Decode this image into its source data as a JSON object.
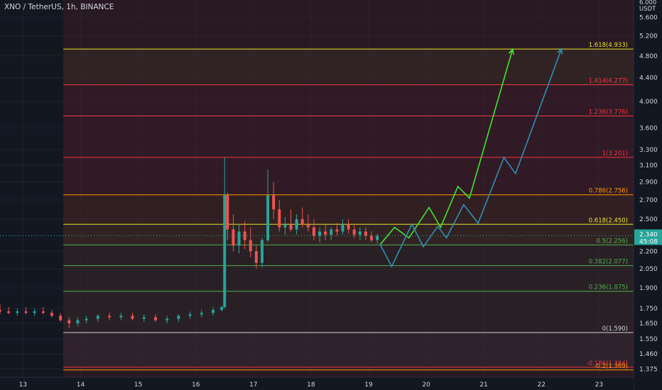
{
  "header": {
    "title": "XNO / TetherUS, 1h, BINANCE"
  },
  "price_axis": {
    "currency": "USDT",
    "top_label": "6.000",
    "ticks": [
      "5.600",
      "5.200",
      "4.800",
      "4.400",
      "4.000",
      "3.600",
      "3.300",
      "3.100",
      "2.900",
      "2.700",
      "2.500",
      "2.200",
      "2.050",
      "1.900",
      "1.750",
      "1.650",
      "1.550",
      "1.460",
      "1.375"
    ],
    "tick_values": [
      5.6,
      5.2,
      4.8,
      4.4,
      4.0,
      3.6,
      3.3,
      3.1,
      2.9,
      2.7,
      2.5,
      2.2,
      2.05,
      1.9,
      1.75,
      1.65,
      1.55,
      1.46,
      1.375
    ],
    "current_price": "2.340",
    "current_value": 2.34,
    "countdown": "45:08"
  },
  "time_axis": {
    "ticks": [
      "13",
      "14",
      "15",
      "16",
      "17",
      "18",
      "19",
      "20",
      "21",
      "22",
      "23"
    ],
    "tick_days": [
      13,
      14,
      15,
      16,
      17,
      18,
      19,
      20,
      21,
      22,
      23
    ]
  },
  "chart_data": {
    "type": "candlestick",
    "title": "XNO / TetherUS, 1h, BINANCE",
    "x_unit": "day of month",
    "y_unit": "USDT",
    "xlim": [
      12.6,
      23.6
    ],
    "ylim": [
      1.33,
      6.0
    ],
    "y_scale": "log",
    "fibonacci_levels": [
      {
        "label": "1.618(4.933)",
        "value": 4.933,
        "color": "#e8e62e"
      },
      {
        "label": "1.414(4.277)",
        "value": 4.277,
        "color": "#f23645"
      },
      {
        "label": "1.236(3.776)",
        "value": 3.776,
        "color": "#f23645"
      },
      {
        "label": "1(3.201)",
        "value": 3.201,
        "color": "#f23645"
      },
      {
        "label": "0.786(2.756)",
        "value": 2.756,
        "color": "#ff9800"
      },
      {
        "label": "0.618(2.450)",
        "value": 2.45,
        "color": "#e8e62e"
      },
      {
        "label": "0.5(2.256)",
        "value": 2.256,
        "color": "#4caf50"
      },
      {
        "label": "0.382(2.077)",
        "value": 2.077,
        "color": "#4caf50"
      },
      {
        "label": "0.236(1.875)",
        "value": 1.875,
        "color": "#4caf50"
      },
      {
        "label": "0(1.590)",
        "value": 1.59,
        "color": "#d1d4dc"
      },
      {
        "label": "-0.186(1.384)",
        "value": 1.384,
        "color": "#f23645"
      },
      {
        "label": "-0.2(1.369)",
        "value": 1.369,
        "color": "#ff9800"
      }
    ],
    "projection_paths": [
      {
        "color": "#3ee62e",
        "points": [
          [
            19.2,
            2.26
          ],
          [
            19.45,
            2.42
          ],
          [
            19.7,
            2.32
          ],
          [
            20.05,
            2.62
          ],
          [
            20.25,
            2.42
          ],
          [
            20.55,
            2.85
          ],
          [
            20.75,
            2.72
          ],
          [
            21.5,
            4.93
          ]
        ]
      },
      {
        "color": "#2f8fb0",
        "points": [
          [
            19.2,
            2.26
          ],
          [
            19.4,
            2.07
          ],
          [
            19.75,
            2.45
          ],
          [
            19.95,
            2.24
          ],
          [
            20.2,
            2.43
          ],
          [
            20.35,
            2.32
          ],
          [
            20.65,
            2.65
          ],
          [
            20.9,
            2.46
          ],
          [
            21.35,
            3.2
          ],
          [
            21.55,
            3.0
          ],
          [
            22.35,
            4.94
          ]
        ]
      }
    ],
    "dark_band_xrange": [
      12.6,
      13.7
    ],
    "candles": [
      [
        12.6,
        1.74,
        1.78,
        1.71,
        1.73
      ],
      [
        12.75,
        1.73,
        1.76,
        1.71,
        1.72
      ],
      [
        12.9,
        1.72,
        1.75,
        1.7,
        1.73
      ],
      [
        13.05,
        1.73,
        1.76,
        1.71,
        1.72
      ],
      [
        13.2,
        1.72,
        1.75,
        1.7,
        1.73
      ],
      [
        13.35,
        1.73,
        1.76,
        1.71,
        1.72
      ],
      [
        13.5,
        1.72,
        1.74,
        1.69,
        1.7
      ],
      [
        13.65,
        1.7,
        1.72,
        1.66,
        1.67
      ],
      [
        13.8,
        1.67,
        1.69,
        1.62,
        1.65
      ],
      [
        13.95,
        1.65,
        1.69,
        1.63,
        1.67
      ],
      [
        14.1,
        1.67,
        1.7,
        1.65,
        1.68
      ],
      [
        14.3,
        1.68,
        1.71,
        1.66,
        1.7
      ],
      [
        14.5,
        1.7,
        1.72,
        1.67,
        1.69
      ],
      [
        14.7,
        1.69,
        1.72,
        1.67,
        1.7
      ],
      [
        14.9,
        1.7,
        1.72,
        1.67,
        1.68
      ],
      [
        15.1,
        1.68,
        1.71,
        1.66,
        1.69
      ],
      [
        15.3,
        1.69,
        1.71,
        1.66,
        1.67
      ],
      [
        15.5,
        1.67,
        1.7,
        1.65,
        1.68
      ],
      [
        15.7,
        1.68,
        1.71,
        1.66,
        1.7
      ],
      [
        15.9,
        1.7,
        1.73,
        1.68,
        1.71
      ],
      [
        16.1,
        1.71,
        1.74,
        1.69,
        1.72
      ],
      [
        16.3,
        1.72,
        1.76,
        1.7,
        1.74
      ],
      [
        16.45,
        1.74,
        1.77,
        1.73,
        1.76
      ],
      [
        16.5,
        1.76,
        3.2,
        1.75,
        2.75
      ],
      [
        16.55,
        2.75,
        2.78,
        2.3,
        2.4
      ],
      [
        16.65,
        2.4,
        2.55,
        2.2,
        2.25
      ],
      [
        16.75,
        2.25,
        2.45,
        2.18,
        2.38
      ],
      [
        16.85,
        2.38,
        2.48,
        2.22,
        2.3
      ],
      [
        16.95,
        2.3,
        2.42,
        2.15,
        2.2
      ],
      [
        17.05,
        2.2,
        2.25,
        2.05,
        2.1
      ],
      [
        17.15,
        2.1,
        2.32,
        2.06,
        2.3
      ],
      [
        17.25,
        2.3,
        3.05,
        2.28,
        2.75
      ],
      [
        17.35,
        2.75,
        2.9,
        2.5,
        2.6
      ],
      [
        17.45,
        2.6,
        2.7,
        2.38,
        2.42
      ],
      [
        17.55,
        2.42,
        2.52,
        2.35,
        2.45
      ],
      [
        17.65,
        2.45,
        2.6,
        2.38,
        2.4
      ],
      [
        17.75,
        2.4,
        2.55,
        2.35,
        2.5
      ],
      [
        17.85,
        2.5,
        2.62,
        2.42,
        2.45
      ],
      [
        17.95,
        2.45,
        2.55,
        2.38,
        2.42
      ],
      [
        18.05,
        2.42,
        2.5,
        2.3,
        2.34
      ],
      [
        18.15,
        2.34,
        2.42,
        2.28,
        2.38
      ],
      [
        18.25,
        2.38,
        2.45,
        2.3,
        2.35
      ],
      [
        18.35,
        2.35,
        2.42,
        2.3,
        2.4
      ],
      [
        18.45,
        2.4,
        2.46,
        2.34,
        2.38
      ],
      [
        18.55,
        2.38,
        2.5,
        2.35,
        2.45
      ],
      [
        18.65,
        2.45,
        2.5,
        2.36,
        2.4
      ],
      [
        18.75,
        2.4,
        2.44,
        2.32,
        2.35
      ],
      [
        18.85,
        2.35,
        2.42,
        2.3,
        2.38
      ],
      [
        18.95,
        2.38,
        2.42,
        2.3,
        2.34
      ],
      [
        19.05,
        2.34,
        2.38,
        2.28,
        2.3
      ],
      [
        19.15,
        2.3,
        2.36,
        2.27,
        2.34
      ]
    ]
  }
}
